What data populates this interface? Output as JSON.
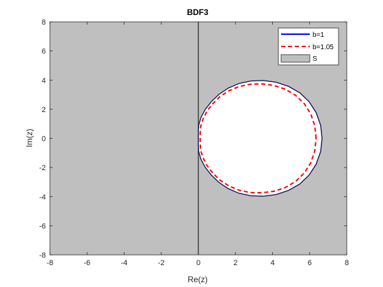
{
  "chart_data": {
    "type": "line",
    "title": "BDF3",
    "xlabel": "Re(z)",
    "ylabel": "Im(z)",
    "xlim": [
      -8,
      8
    ],
    "ylim": [
      -8,
      8
    ],
    "xticks": [
      -8,
      -6,
      -4,
      -2,
      0,
      2,
      4,
      6,
      8
    ],
    "yticks": [
      -8,
      -6,
      -4,
      -2,
      0,
      2,
      4,
      6,
      8
    ],
    "grid": false,
    "legend_position": "top-right",
    "region": {
      "name": "S",
      "fill_color": "#bfbfbf",
      "interior_color": "#ffffff"
    },
    "series": [
      {
        "name": "b=1",
        "color": "#0000ff",
        "line_style": "solid",
        "x": [
          6.67,
          6.59,
          6.35,
          5.97,
          5.47,
          4.86,
          4.2,
          3.52,
          2.84,
          2.19,
          1.61,
          1.11,
          0.7,
          0.37,
          0.14,
          0.02,
          0.0,
          0.0,
          0.0,
          0.02,
          0.14,
          0.37,
          0.7,
          1.11,
          1.61,
          2.19,
          2.84,
          3.52,
          4.2,
          4.86,
          5.47,
          5.97,
          6.35,
          6.59,
          6.67
        ],
        "y": [
          0.0,
          0.9,
          1.78,
          2.52,
          3.13,
          3.57,
          3.85,
          3.97,
          3.94,
          3.77,
          3.45,
          3.02,
          2.52,
          1.98,
          1.43,
          0.9,
          0.5,
          0.0,
          -0.5,
          -0.9,
          -1.43,
          -1.98,
          -2.52,
          -3.02,
          -3.45,
          -3.77,
          -3.94,
          -3.97,
          -3.85,
          -3.57,
          -3.13,
          -2.52,
          -1.78,
          -0.9,
          0.0
        ]
      },
      {
        "name": "b=1.05",
        "color": "#ff0000",
        "line_style": "dashed",
        "x": [
          6.35,
          6.28,
          6.06,
          5.71,
          5.25,
          4.7,
          4.08,
          3.44,
          2.8,
          2.2,
          1.65,
          1.17,
          0.78,
          0.47,
          0.25,
          0.12,
          0.1,
          0.1,
          0.12,
          0.25,
          0.47,
          0.78,
          1.17,
          1.65,
          2.2,
          2.8,
          3.44,
          4.08,
          4.7,
          5.25,
          5.71,
          6.06,
          6.28,
          6.35
        ],
        "y": [
          0.0,
          0.85,
          1.68,
          2.38,
          2.95,
          3.37,
          3.63,
          3.74,
          3.72,
          3.56,
          3.27,
          2.87,
          2.39,
          1.87,
          1.33,
          0.8,
          0.3,
          -0.3,
          -0.8,
          -1.33,
          -1.87,
          -2.39,
          -2.87,
          -3.27,
          -3.56,
          -3.72,
          -3.74,
          -3.63,
          -3.37,
          -2.95,
          -2.38,
          -1.68,
          -0.85,
          0.0
        ]
      }
    ],
    "vertical_line": {
      "x": 0,
      "color": "#262626"
    }
  }
}
